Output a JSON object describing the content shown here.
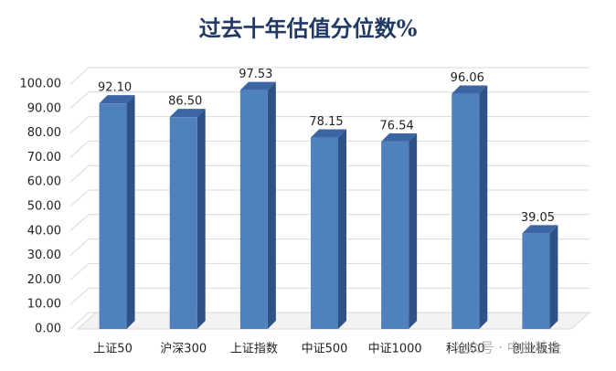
{
  "chart_data": {
    "type": "bar3d",
    "title": "过去十年估值分位数%",
    "categories": [
      "上证50",
      "沪深300",
      "上证指数",
      "中证500",
      "中证1000",
      "科创50",
      "创业板指"
    ],
    "values": [
      92.1,
      86.5,
      97.53,
      78.15,
      76.54,
      96.06,
      39.05
    ],
    "value_labels": [
      "92.10",
      "86.50",
      "97.53",
      "78.15",
      "76.54",
      "96.06",
      "39.05"
    ],
    "color": "#4f81bd",
    "ylim": [
      0,
      100
    ],
    "yticks": [
      {
        "value": 0,
        "label": "0.00"
      },
      {
        "value": 10,
        "label": "10.00"
      },
      {
        "value": 20,
        "label": "20.00"
      },
      {
        "value": 30,
        "label": "30.00"
      },
      {
        "value": 40,
        "label": "40.00"
      },
      {
        "value": 50,
        "label": "50.00"
      },
      {
        "value": 60,
        "label": "60.00"
      },
      {
        "value": 70,
        "label": "70.00"
      },
      {
        "value": 80,
        "label": "80.00"
      },
      {
        "value": 90,
        "label": "90.00"
      },
      {
        "value": 100,
        "label": "100.00"
      }
    ],
    "grid": true,
    "annotation": "公众号 · 中曲基金"
  }
}
